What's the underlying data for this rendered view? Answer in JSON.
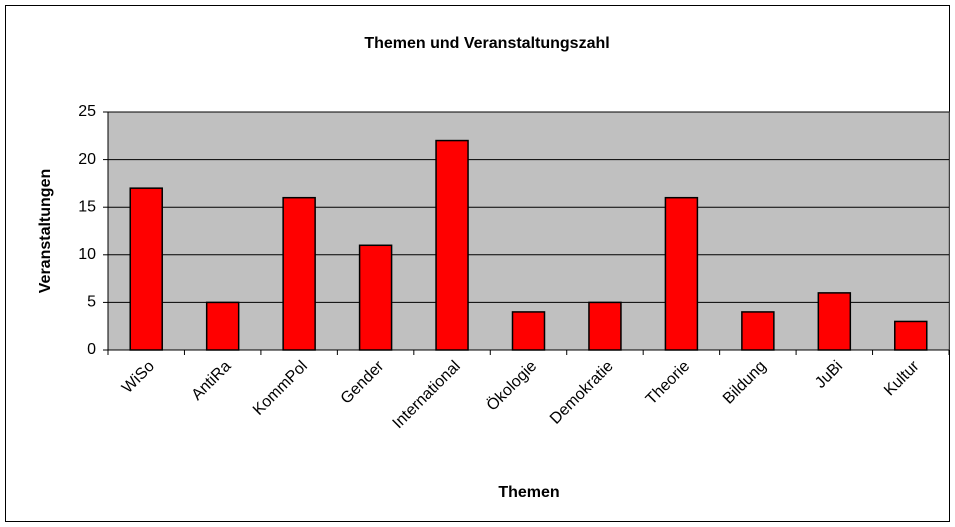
{
  "chart_data": {
    "type": "bar",
    "title": "Themen und Veranstaltungszahl",
    "x_label": "Themen",
    "y_label": "Veranstaltungen",
    "categories": [
      "WiSo",
      "AntiRa",
      "KommPol",
      "Gender",
      "International",
      "Ökologie",
      "Demokratie",
      "Theorie",
      "Bildung",
      "JuBi",
      "Kultur"
    ],
    "values": [
      17,
      5,
      16,
      11,
      22,
      4,
      5,
      16,
      4,
      6,
      3
    ],
    "color": "#ff0000",
    "plot_background": "#c0c0c0",
    "ylim": [
      0,
      25
    ],
    "yticks": [
      0,
      5,
      10,
      15,
      20,
      25
    ],
    "grid": true
  }
}
